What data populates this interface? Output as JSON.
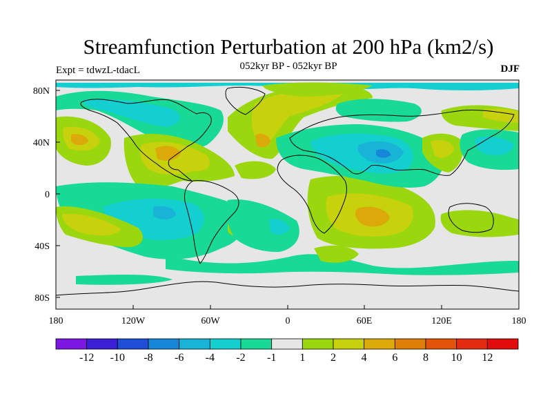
{
  "title": "Streamfunction Perturbation at 200 hPa (km2/s)",
  "subtitle": "052kyr BP - 052kyr BP",
  "left_string": "Expt = tdwzL-tdacL",
  "right_string": "DJF",
  "lat_ticks": [
    "80N",
    "40N",
    "0",
    "40S",
    "80S"
  ],
  "lon_ticks": [
    "180",
    "120W",
    "60W",
    "0",
    "60E",
    "120E",
    "180"
  ],
  "colorbar": {
    "labels": [
      "-12",
      "-10",
      "-8",
      "-6",
      "-4",
      "-2",
      "-1",
      "1",
      "2",
      "4",
      "6",
      "8",
      "10",
      "12"
    ],
    "colors": [
      "#7b16e3",
      "#3a1fd6",
      "#1f4fd8",
      "#1687d8",
      "#18b3d6",
      "#13cfd0",
      "#18d996",
      "#e6e6e6",
      "#9bd70f",
      "#c7d20c",
      "#dba90a",
      "#df7f0a",
      "#e3540a",
      "#e22b10",
      "#e30c0c"
    ]
  },
  "colors": {
    "neutral": "#e6e6e6",
    "pos_light": "#9bd70f",
    "pos_mid": "#c7d20c",
    "pos_strong": "#dba90a",
    "neg_light": "#18d996",
    "neg_mid": "#13cfd0",
    "neg_strong": "#18b3d6",
    "coast": "#000000"
  }
}
